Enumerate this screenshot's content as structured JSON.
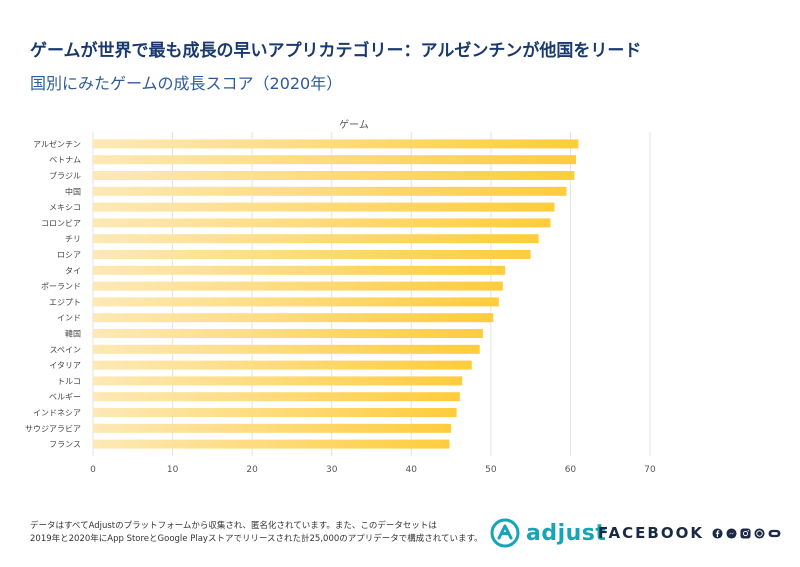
{
  "header": {
    "title": "ゲームが世界で最も成長の早いアプリカテゴリー：アルゼンチンが他国をリード",
    "subtitle": "国別にみたゲームの成長スコア（2020年）"
  },
  "chart_data": {
    "type": "bar",
    "orientation": "horizontal",
    "title": "ゲーム",
    "categories": [
      "アルゼンチン",
      "ベトナム",
      "ブラジル",
      "中国",
      "メキシコ",
      "コロンビア",
      "チリ",
      "ロシア",
      "タイ",
      "ポーランド",
      "エジプト",
      "インド",
      "韓国",
      "スペイン",
      "イタリア",
      "トルコ",
      "ベルギー",
      "インドネシア",
      "サウジアラビア",
      "フランス"
    ],
    "values": [
      61,
      60.7,
      60.5,
      59.5,
      58,
      57.5,
      56,
      55,
      51.8,
      51.5,
      51,
      50.3,
      49,
      48.6,
      47.6,
      46.4,
      46.1,
      45.7,
      45,
      44.8
    ],
    "xlim": [
      0,
      70
    ],
    "xticks": [
      "0",
      "10",
      "20",
      "30",
      "40",
      "50",
      "60",
      "70"
    ],
    "grid": true,
    "colors": {
      "bar_start": "#fde9b7",
      "bar_end": "#ffcc3c",
      "grid": "#e3e3e3"
    }
  },
  "footer": {
    "note_line1": "データはすべてAdjustのプラットフォームから収集され、匿名化されています。また、このデータセットは",
    "note_line2": "2019年と2020年にApp StoreとGoogle Playストアでリリースされた計25,000のアプリデータで構成されています。"
  },
  "logos": {
    "adjust": "adjust",
    "facebook": "FACEBOOK",
    "colors": {
      "adjust": "#14a6b5",
      "facebook": "#1a2a44"
    }
  }
}
